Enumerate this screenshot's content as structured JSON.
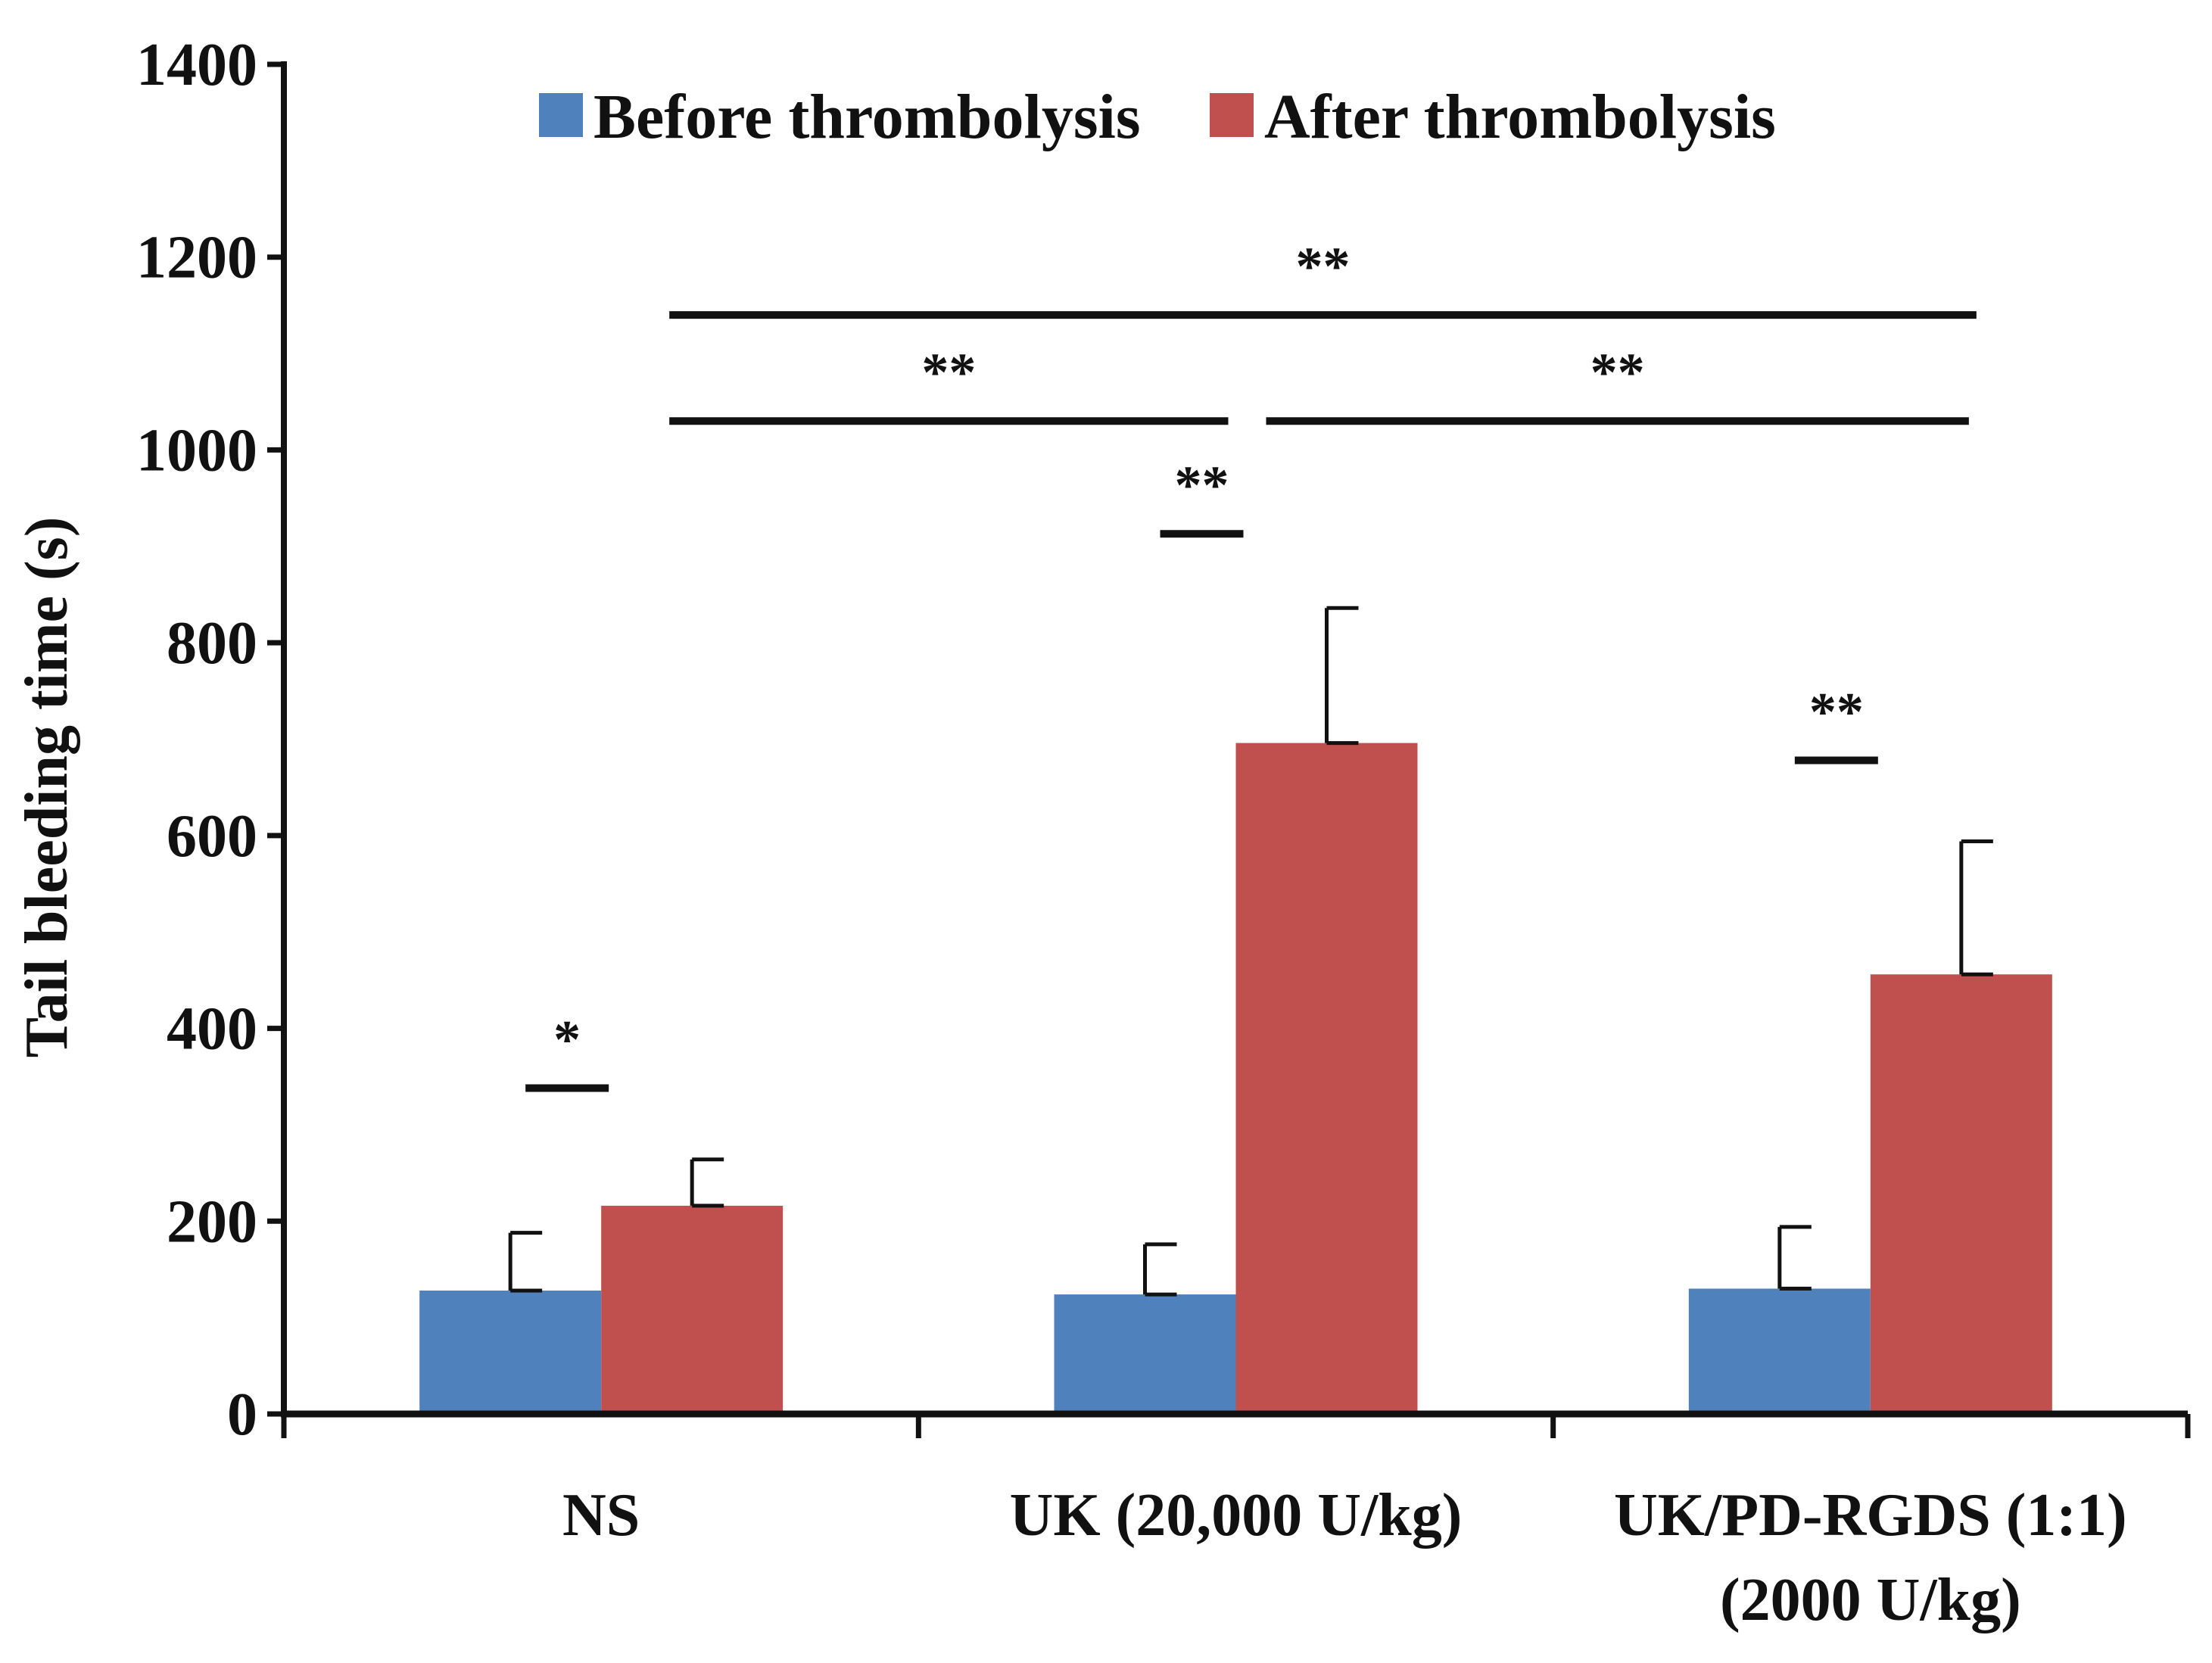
{
  "chart_data": {
    "type": "bar",
    "ylabel": "Tail bleeding time (s)",
    "xlabel": "",
    "ylim": [
      0,
      1400
    ],
    "yticks": [
      0,
      200,
      400,
      600,
      800,
      1000,
      1200,
      1400
    ],
    "grid": false,
    "legend_position": "top",
    "categories": [
      [
        "NS"
      ],
      [
        "UK (20,000 U/kg)"
      ],
      [
        "UK/PD-RGDS (1:1)",
        "(2000 U/kg)"
      ]
    ],
    "series": [
      {
        "name": "Before thrombolysis",
        "color": "#4f81bd",
        "values": [
          128,
          124,
          130
        ],
        "errors": [
          60,
          52,
          64
        ]
      },
      {
        "name": "After thrombolysis",
        "color": "#c0504d",
        "values": [
          216,
          696,
          456
        ],
        "errors": [
          48,
          140,
          138
        ]
      }
    ],
    "significance": [
      {
        "label": "*",
        "from": [
          0,
          0
        ],
        "to": [
          0,
          1
        ],
        "y": 338
      },
      {
        "label": "**",
        "from": [
          1,
          0
        ],
        "to": [
          1,
          1
        ],
        "y": 913
      },
      {
        "label": "**",
        "from": [
          2,
          0
        ],
        "to": [
          2,
          1
        ],
        "y": 678
      },
      {
        "label": "**",
        "from": [
          0,
          1
        ],
        "to": [
          1,
          1
        ],
        "y": 1030
      },
      {
        "label": "**",
        "from": [
          1,
          1
        ],
        "to": [
          2,
          1
        ],
        "y": 1030
      },
      {
        "label": "**",
        "from": [
          0,
          1
        ],
        "to": [
          2,
          1
        ],
        "y": 1140
      }
    ]
  }
}
